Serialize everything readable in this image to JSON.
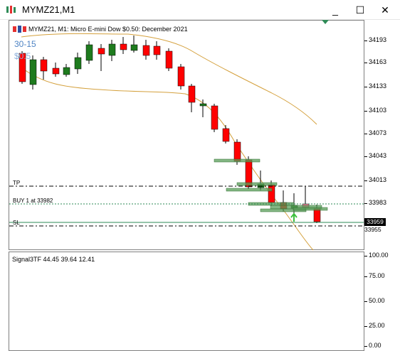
{
  "window": {
    "title": "MYMZ21,M1",
    "minimize": "_",
    "maximize": "☐",
    "close": "✕"
  },
  "main_chart": {
    "symbol_label": "MYMZ21, M1:  Micro E-mini Dow $0.50: December 2021",
    "info_line1": "30-15",
    "info_line2": "$0.5",
    "tp_label": "TP",
    "buy_label": "BUY 1 at 33982",
    "sl_label": "SL",
    "current_price": "33959",
    "current_price_below": "33955",
    "y_ticks": [
      "34193",
      "34163",
      "34133",
      "34103",
      "34073",
      "34043",
      "34013",
      "33983"
    ]
  },
  "sub_chart": {
    "title": "Signal3TF 44.45 39.64 12.41",
    "y_ticks": [
      "100.00",
      "75.00",
      "50.00",
      "25.00",
      "0.00"
    ]
  },
  "colors": {
    "bull": "#1e7b1e",
    "bear": "#ff0000",
    "ma": "#d4a03c",
    "green_line": "#3cbf3c",
    "blue_line": "#1030d0",
    "brown_line": "#8b1a1a",
    "zone": "#5a9e5a"
  }
}
